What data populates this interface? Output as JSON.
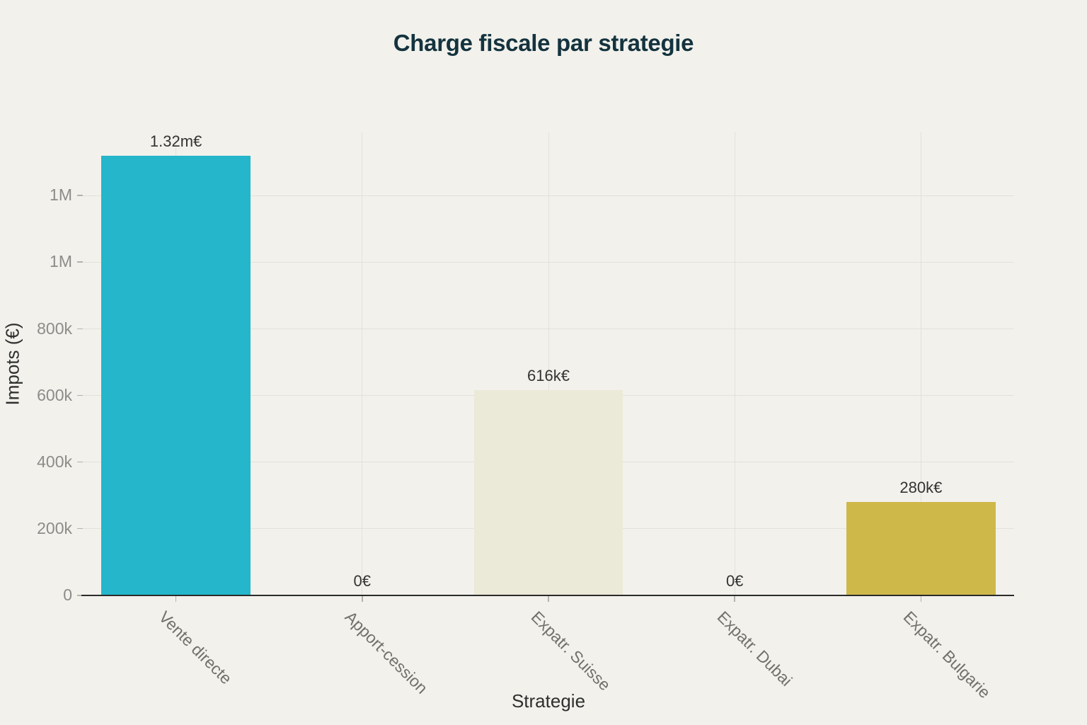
{
  "chart_data": {
    "type": "bar",
    "title": "Charge fiscale par strategie",
    "xlabel": "Strategie",
    "ylabel": "Impots (€)",
    "categories": [
      "Vente directe",
      "Apport-cession",
      "Expatr. Suisse",
      "Expatr. Dubai",
      "Expatr. Bulgarie"
    ],
    "values": [
      1320000,
      0,
      616000,
      0,
      280000
    ],
    "bar_value_labels": [
      "1.32m€",
      "0€",
      "616k€",
      "0€",
      "280k€"
    ],
    "bar_colors": [
      "#25b6cb",
      "#25b6cb",
      "#ebe9d7",
      "#25b6cb",
      "#cfb84a"
    ],
    "ylim": [
      0,
      1390000
    ],
    "ytick_values": [
      0,
      200000,
      400000,
      600000,
      800000,
      1000000,
      1200000
    ],
    "ytick_labels": [
      "0",
      "200k",
      "400k",
      "600k",
      "800k",
      "1M",
      "1M"
    ],
    "grid": true,
    "legend_position": "none",
    "colors": {
      "background": "#f2f1ec",
      "grid": "#e2e1d9",
      "axis_line": "#2b2b2b",
      "tick_mark": "#b3b2ab",
      "ytick_label": "#8c8c89",
      "xtick_label": "#71716c",
      "axis_title": "#2e2f2e",
      "bar_label": "#333333",
      "title": "#14333e"
    }
  }
}
